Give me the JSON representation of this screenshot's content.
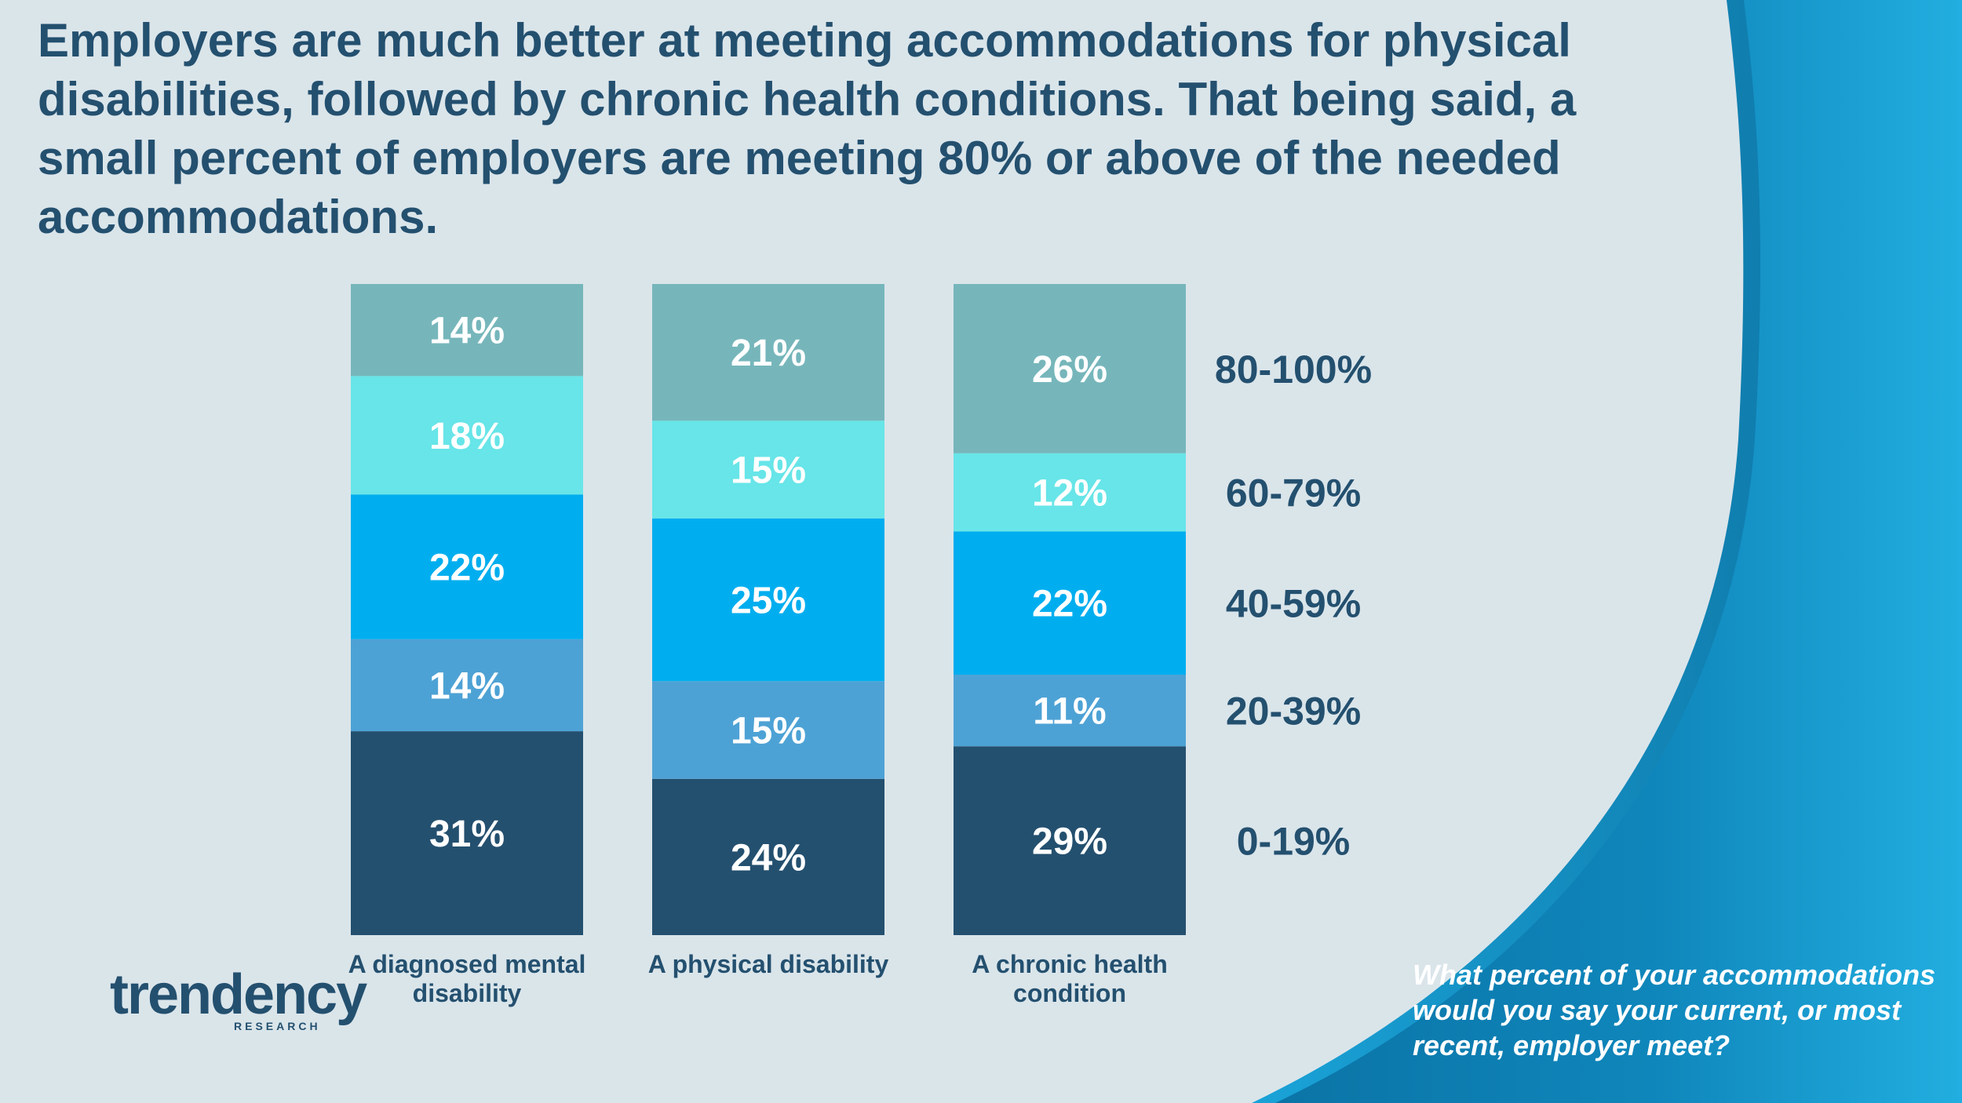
{
  "headline": "Employers are much better at meeting accommodations for physical disabilities, followed by chronic health conditions. That being said, a small percent of employers are meeting 80% or above of the needed accommodations.",
  "question": "What percent of your accommodations would you say your current, or most recent, employer meet?",
  "logo": {
    "word": "trendency",
    "sub": "RESEARCH"
  },
  "colors": {
    "background": "#dae5ea",
    "title": "#24506f",
    "band_dark": "#0f84b8",
    "band_light": "#1ea8de"
  },
  "chart_data": {
    "type": "bar",
    "stacked": true,
    "categories": [
      "A diagnosed mental disability",
      "A physical disability",
      "A chronic health condition"
    ],
    "series": [
      {
        "name": "0-19%",
        "values": [
          31,
          24,
          29
        ],
        "color": "#24506f"
      },
      {
        "name": "20-39%",
        "values": [
          14,
          15,
          11
        ],
        "color": "#4da2d5"
      },
      {
        "name": "40-59%",
        "values": [
          22,
          25,
          22
        ],
        "color": "#00aeef"
      },
      {
        "name": "60-79%",
        "values": [
          18,
          15,
          12
        ],
        "color": "#67e5e8"
      },
      {
        "name": "80-100%",
        "values": [
          14,
          21,
          26
        ],
        "color": "#76b6bb"
      }
    ],
    "legend_position": "right"
  }
}
